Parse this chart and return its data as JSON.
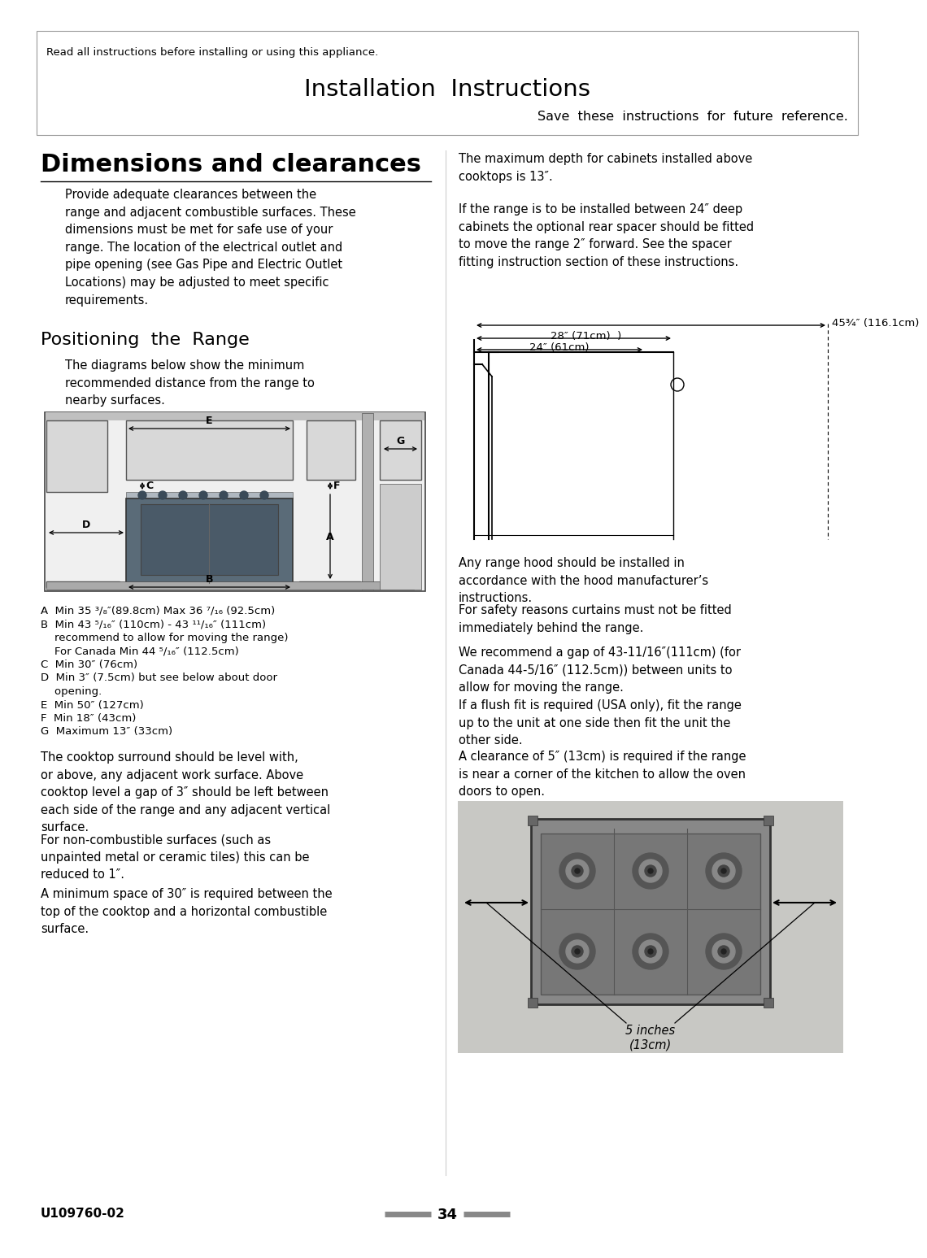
{
  "bg_color": "#ffffff",
  "header_text_small": "Read all instructions before installing or using this appliance.",
  "header_title": "Installation  Instructions",
  "header_subtitle": "Save  these  instructions  for  future  reference.",
  "section1_title": "Dimensions and clearances",
  "section1_body": "Provide adequate clearances between the\nrange and adjacent combustible surfaces. These\ndimensions must be met for safe use of your\nrange. The location of the electrical outlet and\npipe opening (see Gas Pipe and Electric Outlet\nLocations) may be adjusted to meet specific\nrequirements.",
  "section2_title": "Positioning  the  Range",
  "section2_body": "The diagrams below show the minimum\nrecommended distance from the range to\nnearby surfaces.",
  "legend_A": "A  Min 35 ³/₈″(89.8cm) Max 36 ⁷/₁₆ (92.5cm)",
  "legend_B": "B  Min 43 ⁵/₁₆″ (110cm) - 43 ¹¹/₁₆″ (111cm)",
  "legend_B2": "    recommend to allow for moving the range)",
  "legend_B3": "    For Canada Min 44 ⁵/₁₆″ (112.5cm)",
  "legend_C": "C  Min 30″ (76cm)",
  "legend_D": "D  Min 3″ (7.5cm) but see below about door",
  "legend_D2": "    opening.",
  "legend_E": "E  Min 50″ (127cm)",
  "legend_F": "F  Min 18″ (43cm)",
  "legend_G": "G  Maximum 13″ (33cm)",
  "para2": "The cooktop surround should be level with,\nor above, any adjacent work surface. Above\ncooktop level a gap of 3″ should be left between\neach side of the range and any adjacent vertical\nsurface.",
  "para3": "For non-combustible surfaces (such as\nunpainted metal or ceramic tiles) this can be\nreduced to 1″.",
  "para4": "A minimum space of 30″ is required between the\ntop of the cooktop and a horizontal combustible\nsurface.",
  "right_body1": "The maximum depth for cabinets installed above\ncooktops is 13″.",
  "right_body2": "If the range is to be installed between 24″ deep\ncabinets the optional rear spacer should be fitted\nto move the range 2″ forward. See the spacer\nfitting instruction section of these instructions.",
  "dim_label1": "45¾″ (116.1cm)",
  "dim_label2": "28″ (71cm)  )",
  "dim_label3": "24″ (61cm)",
  "right_body3": "Any range hood should be installed in\naccordance with the hood manufacturer’s\ninstructions.",
  "right_body4": "For safety reasons curtains must not be fitted\nimmediately behind the range.",
  "right_body5": "We recommend a gap of 43-11/16″(111cm) (for\nCanada 44-5/16″ (112.5cm)) between units to\nallow for moving the range.",
  "right_body6": "If a flush fit is required (USA only), fit the range\nup to the unit at one side then fit the unit the\nother side.",
  "right_body7": "A clearance of 5″ (13cm) is required if the range\nis near a corner of the kitchen to allow the oven\ndoors to open.",
  "bottom_label_line1": "5 inches",
  "bottom_label_line2": "(13cm)",
  "footer_left": "U109760-02",
  "footer_center": "34",
  "footer_line_color": "#888888"
}
